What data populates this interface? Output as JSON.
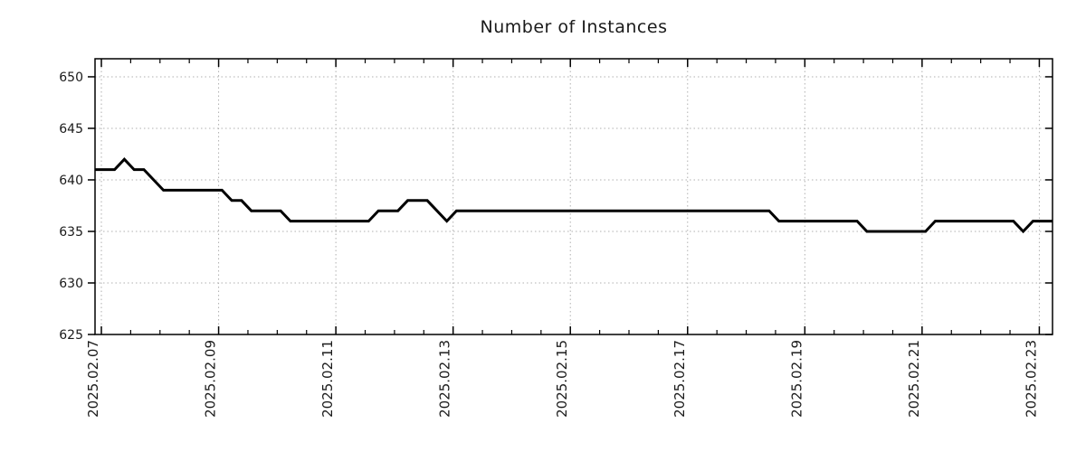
{
  "title": "Number of Instances",
  "chart_data": {
    "type": "line",
    "title": "Number of Instances",
    "series_name": "number-of-instances",
    "x_start": "2025-02-06 ~21:40",
    "x_interval_hours": 4,
    "values": [
      641,
      641,
      641,
      642,
      641,
      641,
      640,
      639,
      639,
      639,
      639,
      639,
      639,
      639,
      638,
      638,
      637,
      637,
      637,
      637,
      636,
      636,
      636,
      636,
      636,
      636,
      636,
      636,
      636,
      637,
      637,
      637,
      638,
      638,
      638,
      637,
      636,
      637,
      637,
      637,
      637,
      637,
      637,
      637,
      637,
      637,
      637,
      637,
      637,
      637,
      637,
      637,
      637,
      637,
      637,
      637,
      637,
      637,
      637,
      637,
      637,
      637,
      637,
      637,
      637,
      637,
      637,
      637,
      637,
      637,
      636,
      636,
      636,
      636,
      636,
      636,
      636,
      636,
      636,
      635,
      635,
      635,
      635,
      635,
      635,
      635,
      636,
      636,
      636,
      636,
      636,
      636,
      636,
      636,
      636,
      635,
      636,
      636,
      636
    ],
    "x_ticks": [
      {
        "label": "2025.02.07",
        "index": 0.65
      },
      {
        "label": "2025.02.09",
        "index": 12.65
      },
      {
        "label": "2025.02.11",
        "index": 24.65
      },
      {
        "label": "2025.02.13",
        "index": 36.65
      },
      {
        "label": "2025.02.15",
        "index": 48.65
      },
      {
        "label": "2025.02.17",
        "index": 60.65
      },
      {
        "label": "2025.02.19",
        "index": 72.65
      },
      {
        "label": "2025.02.21",
        "index": 84.65
      },
      {
        "label": "2025.02.23",
        "index": 96.65
      }
    ],
    "x_minor_tick_step_indices": 3,
    "y_ticks": [
      625,
      630,
      635,
      640,
      645,
      650
    ],
    "ylim": [
      625,
      651.75
    ],
    "grid": true,
    "legend": "none",
    "line_color": "#000000",
    "grid_color": "#b0b0b0",
    "axis_color": "#000000",
    "background": "#ffffff"
  }
}
